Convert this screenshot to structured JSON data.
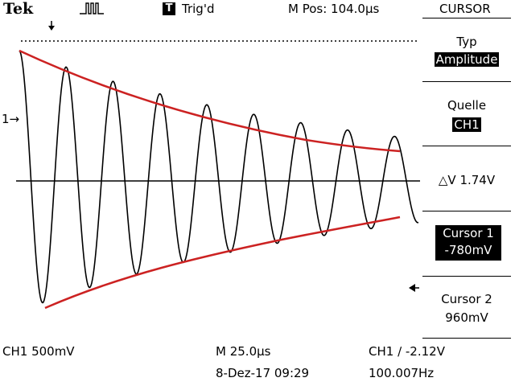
{
  "header": {
    "brand": "Tek",
    "trigger_state_badge": "T",
    "trigger_state": "Trig'd",
    "m_pos": "M Pos: 104.0µs",
    "menu_title": "CURSOR"
  },
  "menu": {
    "typ_label": "Typ",
    "typ_value": "Amplitude",
    "quelle_label": "Quelle",
    "quelle_value": "CH1",
    "delta_v": "△V 1.74V",
    "cursor1_label": "Cursor 1",
    "cursor1_value": "-780mV",
    "cursor2_label": "Cursor 2",
    "cursor2_value": "960mV"
  },
  "footer": {
    "ch1_scale": "CH1  500mV",
    "timebase": "M 25.0µs",
    "trigger": "CH1 ∕ -2.12V",
    "date": "8-Dez-17 09:29",
    "frequency": "100.007Hz"
  },
  "screen": {
    "channel_marker": "1",
    "colors": {
      "trace": "#000000",
      "envelope": "#cc2222",
      "cursor": "#000000"
    },
    "chart_data": {
      "type": "line",
      "series": [
        {
          "values": "damped sinusoid, 8.5 visible periods, decaying amplitude"
        }
      ]
    }
  }
}
